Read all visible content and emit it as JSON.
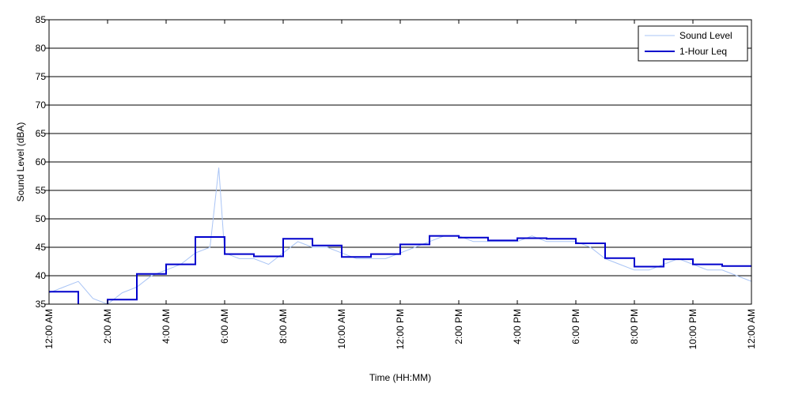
{
  "chart_data": {
    "type": "line",
    "title": "",
    "xlabel": "Time (HH:MM)",
    "ylabel": "Sound Level (dBA)",
    "xlim": [
      0,
      24
    ],
    "ylim": [
      35,
      85
    ],
    "yticks": [
      35,
      40,
      45,
      50,
      55,
      60,
      65,
      70,
      75,
      80,
      85
    ],
    "xticks": [
      {
        "x": 0,
        "label": "12:00 AM"
      },
      {
        "x": 2,
        "label": "2:00 AM"
      },
      {
        "x": 4,
        "label": "4:00 AM"
      },
      {
        "x": 6,
        "label": "6:00 AM"
      },
      {
        "x": 8,
        "label": "8:00 AM"
      },
      {
        "x": 10,
        "label": "10:00 AM"
      },
      {
        "x": 12,
        "label": "12:00 PM"
      },
      {
        "x": 14,
        "label": "2:00 PM"
      },
      {
        "x": 16,
        "label": "4:00 PM"
      },
      {
        "x": 18,
        "label": "6:00 PM"
      },
      {
        "x": 20,
        "label": "8:00 PM"
      },
      {
        "x": 22,
        "label": "10:00 PM"
      },
      {
        "x": 24,
        "label": "12:00 AM"
      }
    ],
    "grid": "horizontal",
    "legend": {
      "position": "top-right",
      "entries": [
        {
          "name": "Sound Level",
          "color": "#a9c4f5"
        },
        {
          "name": "1-Hour Leq",
          "color": "#0000cc"
        }
      ]
    },
    "series": [
      {
        "name": "Sound Level",
        "style": "thin-line",
        "color": "#a9c4f5",
        "x": [
          0,
          0.5,
          1,
          1.5,
          2,
          2.5,
          3,
          3.5,
          4,
          4.5,
          5,
          5.5,
          5.8,
          6,
          6.5,
          7,
          7.5,
          8,
          8.5,
          9,
          9.5,
          10,
          10.5,
          11,
          11.5,
          12,
          12.5,
          13,
          13.5,
          14,
          14.5,
          15,
          15.5,
          16,
          16.5,
          17,
          17.5,
          18,
          18.5,
          19,
          19.5,
          20,
          20.5,
          21,
          21.5,
          22,
          22.5,
          23,
          23.5,
          24
        ],
        "y": [
          37,
          38,
          39,
          36,
          35,
          37,
          38,
          40,
          41,
          42,
          44,
          45,
          59,
          44,
          43,
          43,
          42,
          44,
          46,
          45,
          45,
          44,
          43,
          43,
          43,
          44,
          45,
          46,
          47,
          47,
          46,
          46,
          46,
          46,
          47,
          46,
          46,
          46,
          45,
          43,
          42,
          41,
          41,
          42,
          43,
          42,
          41,
          41,
          40,
          39
        ]
      },
      {
        "name": "1-Hour Leq",
        "style": "step",
        "color": "#0000cc",
        "hours": [
          0,
          1,
          2,
          3,
          4,
          5,
          6,
          7,
          8,
          9,
          10,
          11,
          12,
          13,
          14,
          15,
          16,
          17,
          18,
          19,
          20,
          21,
          22,
          23
        ],
        "values": [
          37.2,
          34.5,
          35.8,
          40.3,
          42.0,
          46.8,
          43.8,
          43.4,
          46.5,
          45.3,
          43.3,
          43.8,
          45.5,
          47.0,
          46.7,
          46.2,
          46.6,
          46.5,
          45.7,
          43.1,
          41.6,
          42.9,
          42.0,
          41.7
        ]
      }
    ]
  }
}
